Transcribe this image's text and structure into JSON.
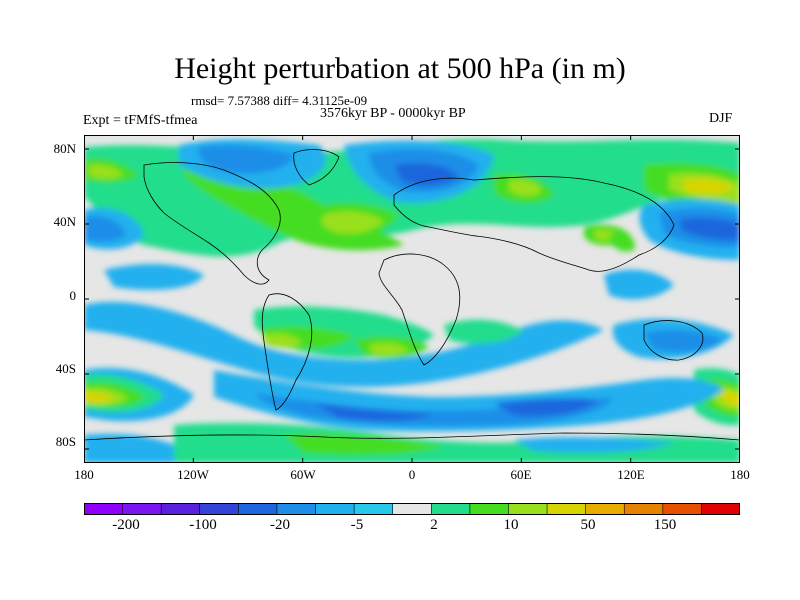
{
  "title": "Height perturbation at 500 hPa (in m)",
  "stats_line": "rmsd= 7.57388 diff= 4.31125e-09",
  "period_label": "3576kyr BP - 0000kyr BP",
  "experiment_label": "Expt = tFMfS-tfmea",
  "season_label": "DJF",
  "axes": {
    "y_ticks": [
      "80N",
      "40N",
      "0",
      "40S",
      "80S"
    ],
    "x_ticks": [
      "180",
      "120W",
      "60W",
      "0",
      "60E",
      "120E",
      "180"
    ]
  },
  "colorbar": {
    "labels": [
      "-200",
      "-100",
      "-20",
      "-5",
      "2",
      "10",
      "50",
      "150"
    ],
    "colors": [
      "#8f00ff",
      "#7a16f2",
      "#5a20e0",
      "#3544d8",
      "#1d66dd",
      "#1f8ee8",
      "#20b0ee",
      "#28c8ea",
      "#e6e6e6",
      "#22dd8c",
      "#44dd22",
      "#9ae01a",
      "#d8d400",
      "#e6ac00",
      "#e68200",
      "#e64e00",
      "#e00000"
    ]
  },
  "colors": {
    "land_outline": "#000000",
    "neutral": "#e6e6e6"
  }
}
